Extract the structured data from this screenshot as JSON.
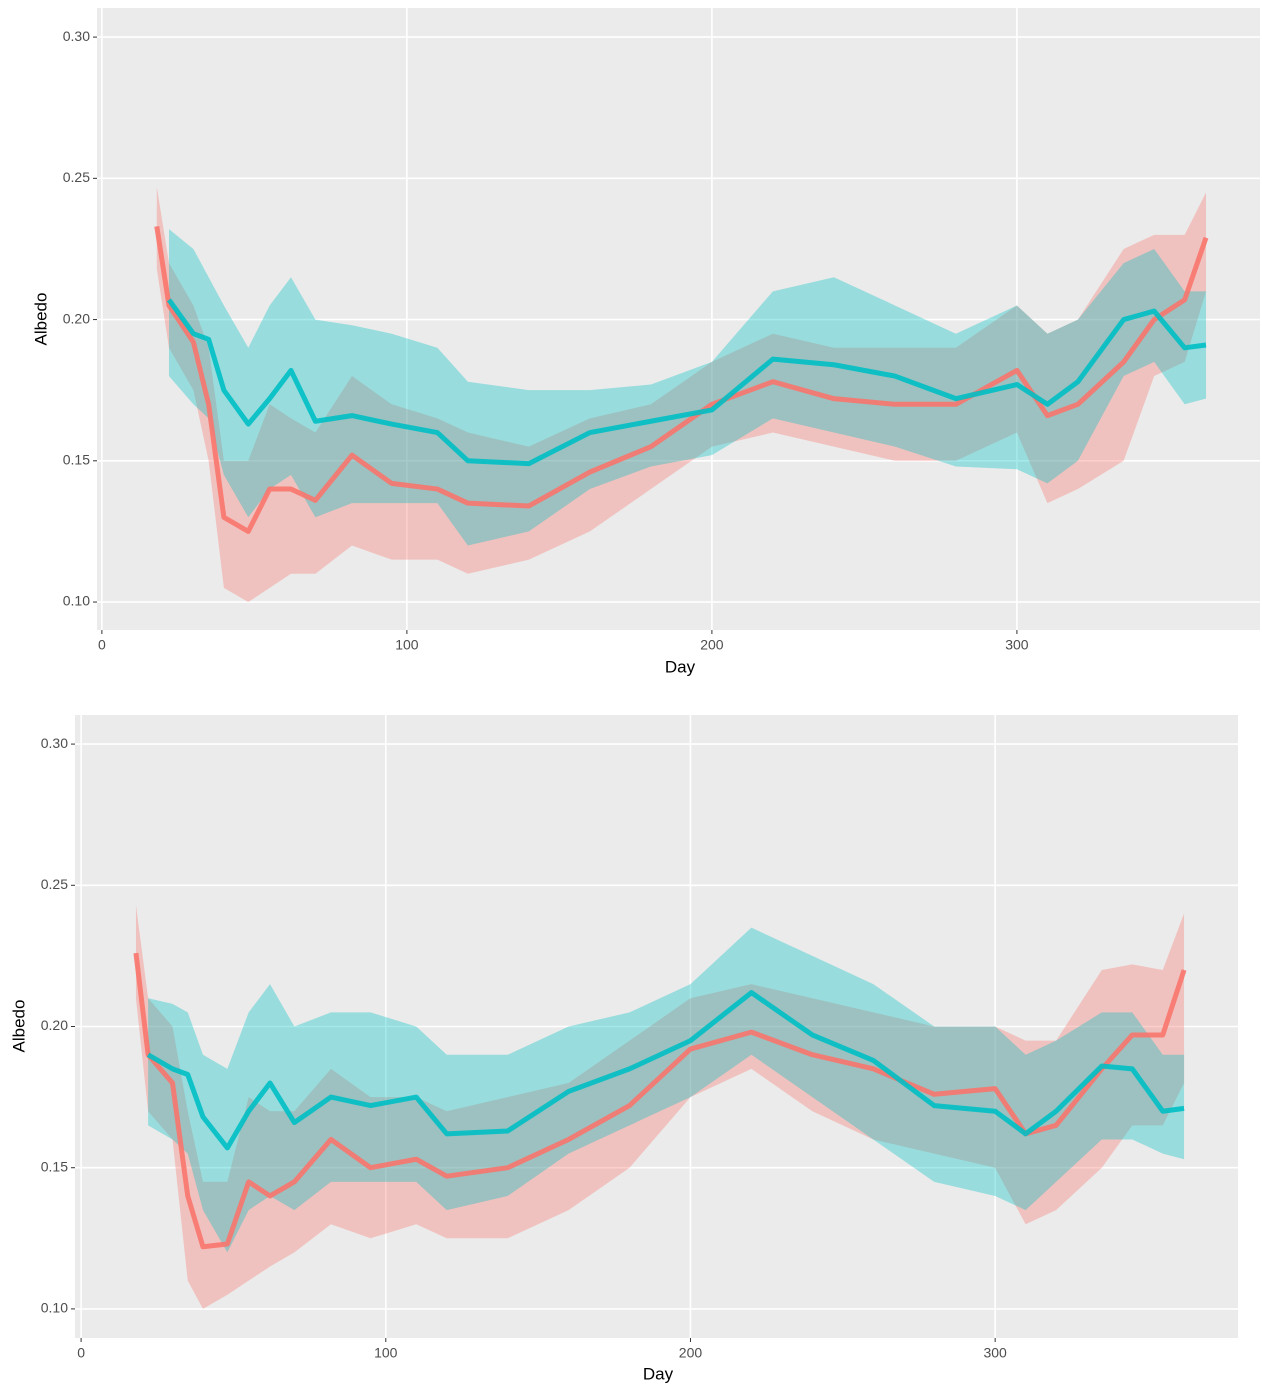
{
  "chart_data": [
    {
      "type": "line",
      "x_label": "Day",
      "y_label": "Albedo",
      "grid": true,
      "xlim": [
        -1.6,
        379.7
      ],
      "ylim": [
        0.0901,
        0.3103
      ],
      "xticks": [
        0,
        100,
        200,
        300
      ],
      "yticks": [
        {
          "value": 0.1,
          "label": "0.10"
        },
        0.15,
        {
          "value": 0.2,
          "label": "0.20"
        },
        0.25,
        {
          "value": 0.3,
          "label": "0.30"
        }
      ],
      "x": [
        18,
        22,
        30,
        35,
        40,
        48,
        55,
        62,
        70,
        82,
        95,
        110,
        120,
        140,
        160,
        180,
        200,
        220,
        240,
        260,
        280,
        300,
        310,
        320,
        335,
        345,
        355,
        362
      ],
      "series": [
        {
          "color": "#F8766D",
          "values": [
            0.233,
            0.205,
            0.192,
            0.17,
            0.13,
            0.125,
            0.14,
            0.14,
            0.136,
            0.152,
            0.142,
            0.14,
            0.135,
            0.134,
            0.146,
            0.155,
            0.17,
            0.178,
            0.172,
            0.17,
            0.17,
            0.182,
            0.166,
            0.17,
            0.185,
            0.2,
            0.207,
            0.229
          ],
          "lower": [
            0.218,
            0.19,
            0.175,
            0.15,
            0.105,
            0.1,
            0.105,
            0.11,
            0.11,
            0.12,
            0.115,
            0.115,
            0.11,
            0.115,
            0.125,
            0.14,
            0.155,
            0.16,
            0.155,
            0.15,
            0.15,
            0.16,
            0.135,
            0.14,
            0.15,
            0.18,
            0.185,
            0.21
          ],
          "upper": [
            0.247,
            0.22,
            0.205,
            0.19,
            0.15,
            0.15,
            0.17,
            0.165,
            0.16,
            0.18,
            0.17,
            0.165,
            0.16,
            0.155,
            0.165,
            0.17,
            0.185,
            0.195,
            0.19,
            0.19,
            0.19,
            0.205,
            0.195,
            0.2,
            0.225,
            0.23,
            0.23,
            0.245
          ]
        },
        {
          "color": "#00BFC4",
          "values": [
            null,
            0.207,
            0.195,
            0.193,
            0.175,
            0.163,
            0.172,
            0.182,
            0.164,
            0.166,
            0.163,
            0.16,
            0.15,
            0.149,
            0.16,
            0.164,
            0.168,
            0.186,
            0.184,
            0.18,
            0.172,
            0.177,
            0.17,
            0.178,
            0.2,
            0.203,
            0.19,
            0.191
          ],
          "lower": [
            null,
            0.18,
            0.17,
            0.165,
            0.145,
            0.13,
            0.14,
            0.145,
            0.13,
            0.135,
            0.135,
            0.135,
            0.12,
            0.125,
            0.14,
            0.148,
            0.152,
            0.165,
            0.16,
            0.155,
            0.148,
            0.147,
            0.142,
            0.15,
            0.18,
            0.185,
            0.17,
            0.172
          ],
          "upper": [
            null,
            0.232,
            0.225,
            0.215,
            0.205,
            0.19,
            0.205,
            0.215,
            0.2,
            0.198,
            0.195,
            0.19,
            0.178,
            0.175,
            0.175,
            0.177,
            0.185,
            0.21,
            0.215,
            0.205,
            0.195,
            0.205,
            0.195,
            0.2,
            0.22,
            0.225,
            0.21,
            0.21
          ]
        }
      ]
    },
    {
      "type": "line",
      "x_label": "Day",
      "y_label": "Albedo",
      "grid": true,
      "xlim": [
        -2,
        379.7
      ],
      "ylim": [
        0.0897,
        0.3103
      ],
      "xticks": [
        0,
        100,
        200,
        300
      ],
      "yticks": [
        {
          "value": 0.1,
          "label": "0.10"
        },
        0.15,
        {
          "value": 0.2,
          "label": "0.20"
        },
        0.25,
        {
          "value": 0.3,
          "label": "0.30"
        }
      ],
      "x": [
        18,
        22,
        30,
        35,
        40,
        48,
        55,
        62,
        70,
        82,
        95,
        110,
        120,
        140,
        160,
        180,
        200,
        220,
        240,
        260,
        280,
        300,
        310,
        320,
        335,
        345,
        355,
        362
      ],
      "series": [
        {
          "color": "#F8766D",
          "values": [
            0.226,
            0.19,
            0.18,
            0.14,
            0.122,
            0.123,
            0.145,
            0.14,
            0.145,
            0.16,
            0.15,
            0.153,
            0.147,
            0.15,
            0.16,
            0.172,
            0.192,
            0.198,
            0.19,
            0.185,
            0.176,
            0.178,
            0.162,
            0.165,
            0.185,
            0.197,
            0.197,
            0.22
          ],
          "lower": [
            0.21,
            0.17,
            0.16,
            0.11,
            0.1,
            0.105,
            0.11,
            0.115,
            0.12,
            0.13,
            0.125,
            0.13,
            0.125,
            0.125,
            0.135,
            0.15,
            0.175,
            0.185,
            0.17,
            0.16,
            0.155,
            0.15,
            0.13,
            0.135,
            0.15,
            0.165,
            0.165,
            0.18
          ],
          "upper": [
            0.243,
            0.21,
            0.2,
            0.17,
            0.145,
            0.145,
            0.175,
            0.17,
            0.17,
            0.185,
            0.175,
            0.175,
            0.17,
            0.175,
            0.18,
            0.195,
            0.21,
            0.215,
            0.21,
            0.205,
            0.2,
            0.2,
            0.195,
            0.195,
            0.22,
            0.222,
            0.22,
            0.24
          ]
        },
        {
          "color": "#00BFC4",
          "values": [
            null,
            0.19,
            0.185,
            0.183,
            0.168,
            0.157,
            0.17,
            0.18,
            0.166,
            0.175,
            0.172,
            0.175,
            0.162,
            0.163,
            0.177,
            0.185,
            0.195,
            0.212,
            0.197,
            0.188,
            0.172,
            0.17,
            0.162,
            0.17,
            0.186,
            0.185,
            0.17,
            0.171
          ],
          "lower": [
            null,
            0.165,
            0.16,
            0.155,
            0.135,
            0.12,
            0.135,
            0.14,
            0.135,
            0.145,
            0.145,
            0.145,
            0.135,
            0.14,
            0.155,
            0.165,
            0.175,
            0.19,
            0.175,
            0.16,
            0.145,
            0.14,
            0.135,
            0.145,
            0.16,
            0.16,
            0.155,
            0.153
          ],
          "upper": [
            null,
            0.21,
            0.208,
            0.205,
            0.19,
            0.185,
            0.205,
            0.215,
            0.2,
            0.205,
            0.205,
            0.2,
            0.19,
            0.19,
            0.2,
            0.205,
            0.215,
            0.235,
            0.225,
            0.215,
            0.2,
            0.2,
            0.19,
            0.195,
            0.205,
            0.205,
            0.19,
            0.19
          ]
        }
      ]
    }
  ]
}
